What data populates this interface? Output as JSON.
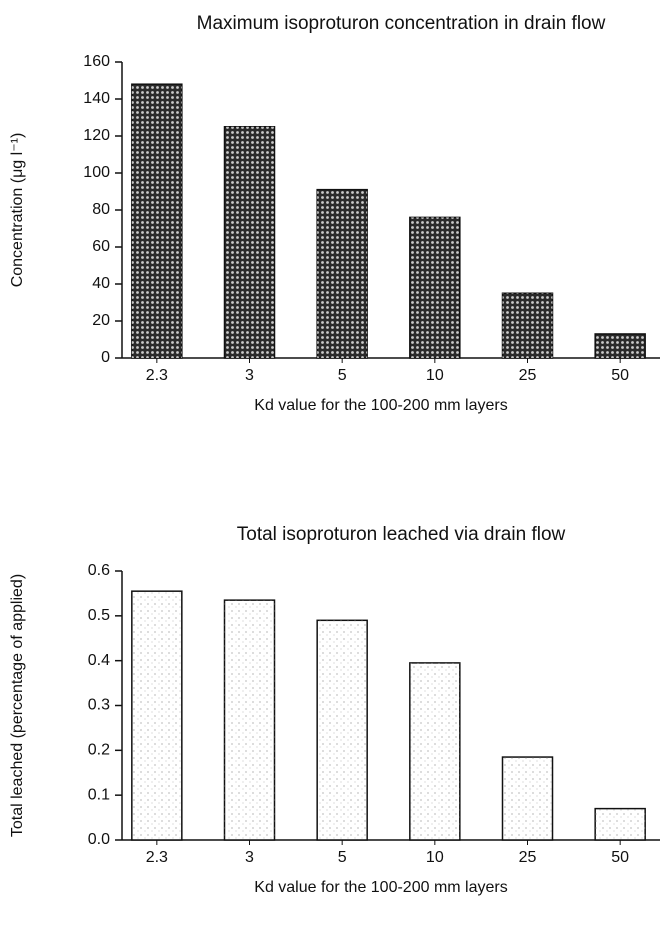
{
  "chart_data": [
    {
      "type": "bar",
      "title": "Maximum isoproturon concentration in drain flow",
      "x_label": "Kd value for the 100-200 mm layers",
      "y_label": "Concentration (μg l⁻¹)",
      "categories": [
        "2.3",
        "3",
        "5",
        "10",
        "25",
        "50"
      ],
      "values": [
        148,
        125,
        91,
        76,
        35,
        13
      ],
      "color": "#2a2a2a",
      "ylim": [
        0,
        160
      ],
      "yticks": [
        0,
        20,
        40,
        60,
        80,
        100,
        120,
        140,
        160
      ]
    },
    {
      "type": "bar",
      "title": "Total isoproturon leached via drain flow",
      "x_label": "Kd value for the 100-200 mm layers",
      "y_label": "Total leached (percentage of applied)",
      "categories": [
        "2.3",
        "3",
        "5",
        "10",
        "25",
        "50"
      ],
      "values": [
        0.555,
        0.535,
        0.49,
        0.395,
        0.185,
        0.07
      ],
      "color": "#ffffff",
      "ylim": [
        0,
        0.6
      ],
      "yticks": [
        {
          "value": 0,
          "label": "0.0"
        },
        0.1,
        0.2,
        0.3,
        0.4,
        0.5,
        0.6
      ]
    }
  ]
}
